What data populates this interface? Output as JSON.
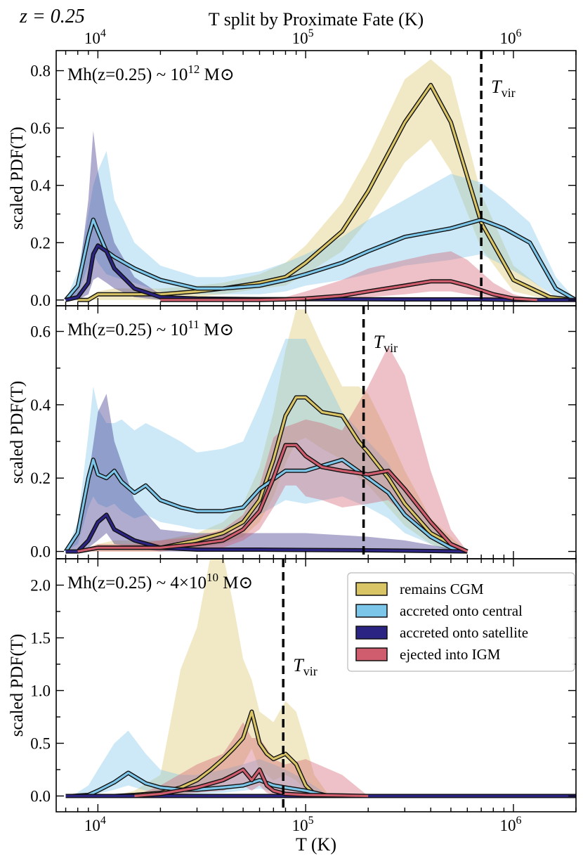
{
  "figure": {
    "redshift_label": "z = 0.25",
    "top_title": "T split by Proximate Fate (K)",
    "xlabel": "T (K)",
    "ylabel": "scaled PDF(T)",
    "x_tick_labels": [
      "10^4",
      "10^5",
      "10^6"
    ]
  },
  "legend": {
    "placement": "upper-right of bottom panel",
    "entries": [
      {
        "label": "remains CGM",
        "color": "#d9c566"
      },
      {
        "label": "accreted onto central",
        "color": "#7cc6ea"
      },
      {
        "label": "accreted onto satellite",
        "color": "#2c2483"
      },
      {
        "label": "ejected into IGM",
        "color": "#cf5d6d"
      }
    ]
  },
  "chart_data": [
    {
      "type": "line",
      "title": "Mh(z=0.25) ~ 10^12 M_sun",
      "xscale": "log",
      "xlim": [
        6300,
        2000000
      ],
      "ylim": [
        -0.02,
        0.87
      ],
      "yticks": [
        0.0,
        0.2,
        0.4,
        0.6,
        0.8
      ],
      "tvir": 700000,
      "tvir_label": "T_vir",
      "series": [
        {
          "name": "remains CGM",
          "x": [
            8000,
            9000,
            10000,
            12000,
            15000,
            20000,
            30000,
            40000,
            60000,
            80000,
            100000,
            150000,
            200000,
            300000,
            400000,
            500000,
            700000,
            1000000,
            1500000,
            2000000
          ],
          "y": [
            0.0,
            0.0,
            0.02,
            0.02,
            0.02,
            0.02,
            0.03,
            0.04,
            0.06,
            0.08,
            0.13,
            0.24,
            0.38,
            0.62,
            0.75,
            0.62,
            0.27,
            0.07,
            0.01,
            0.0
          ],
          "lo": [
            0.0,
            0.0,
            0.0,
            0.0,
            0.0,
            0.0,
            0.01,
            0.02,
            0.04,
            0.05,
            0.09,
            0.17,
            0.28,
            0.48,
            0.56,
            0.45,
            0.18,
            0.03,
            0.0,
            0.0
          ],
          "hi": [
            0.0,
            0.01,
            0.03,
            0.04,
            0.04,
            0.04,
            0.05,
            0.06,
            0.09,
            0.13,
            0.19,
            0.34,
            0.5,
            0.77,
            0.84,
            0.78,
            0.37,
            0.12,
            0.02,
            0.0
          ]
        },
        {
          "name": "accreted onto central",
          "x": [
            7000,
            8000,
            9000,
            9500,
            10000,
            11000,
            12000,
            15000,
            20000,
            30000,
            40000,
            60000,
            80000,
            100000,
            150000,
            200000,
            300000,
            500000,
            700000,
            900000,
            1200000,
            1600000,
            2000000
          ],
          "y": [
            0.0,
            0.05,
            0.22,
            0.28,
            0.24,
            0.17,
            0.15,
            0.11,
            0.07,
            0.04,
            0.04,
            0.05,
            0.07,
            0.09,
            0.13,
            0.17,
            0.22,
            0.25,
            0.28,
            0.25,
            0.2,
            0.04,
            0.0
          ],
          "lo": [
            0.0,
            0.02,
            0.12,
            0.16,
            0.13,
            0.09,
            0.08,
            0.06,
            0.03,
            0.02,
            0.02,
            0.02,
            0.03,
            0.05,
            0.07,
            0.09,
            0.12,
            0.14,
            0.16,
            0.12,
            0.07,
            0.01,
            0.0
          ],
          "hi": [
            0.0,
            0.1,
            0.3,
            0.4,
            0.45,
            0.52,
            0.35,
            0.2,
            0.12,
            0.08,
            0.08,
            0.1,
            0.13,
            0.16,
            0.22,
            0.28,
            0.35,
            0.44,
            0.41,
            0.35,
            0.27,
            0.08,
            0.0
          ]
        },
        {
          "name": "accreted onto satellite",
          "x": [
            7000,
            8000,
            9000,
            9500,
            10000,
            11000,
            12000,
            15000,
            20000,
            30000,
            60000,
            100000,
            300000,
            700000,
            1000000,
            2000000
          ],
          "y": [
            0.0,
            0.01,
            0.06,
            0.16,
            0.19,
            0.17,
            0.11,
            0.04,
            0.01,
            0.005,
            0.003,
            0.003,
            0.002,
            0.002,
            0.0,
            0.0
          ],
          "lo": [
            0.0,
            0.0,
            0.02,
            0.07,
            0.08,
            0.06,
            0.04,
            0.01,
            0.0,
            0.0,
            0.0,
            0.0,
            0.0,
            0.0,
            0.0,
            0.0
          ],
          "hi": [
            0.0,
            0.05,
            0.35,
            0.59,
            0.45,
            0.3,
            0.2,
            0.08,
            0.02,
            0.01,
            0.01,
            0.01,
            0.01,
            0.01,
            0.0,
            0.0
          ]
        },
        {
          "name": "ejected into IGM",
          "x": [
            20000,
            60000,
            80000,
            100000,
            150000,
            200000,
            300000,
            400000,
            500000,
            600000,
            800000,
            1000000,
            1300000
          ],
          "y": [
            0.0,
            0.0,
            0.002,
            0.005,
            0.015,
            0.03,
            0.05,
            0.065,
            0.065,
            0.05,
            0.02,
            0.005,
            0.0
          ],
          "lo": [
            0.0,
            0.0,
            0.0,
            0.0,
            0.005,
            0.01,
            0.02,
            0.03,
            0.03,
            0.02,
            0.005,
            0.0,
            0.0
          ],
          "hi": [
            0.0,
            0.0,
            0.01,
            0.03,
            0.07,
            0.11,
            0.14,
            0.16,
            0.17,
            0.14,
            0.06,
            0.02,
            0.0
          ]
        }
      ]
    },
    {
      "type": "line",
      "title": "Mh(z=0.25) ~ 10^11 M_sun",
      "xscale": "log",
      "xlim": [
        6300,
        2000000
      ],
      "ylim": [
        -0.02,
        0.67
      ],
      "yticks": [
        0.0,
        0.2,
        0.4,
        0.6
      ],
      "tvir": 190000,
      "tvir_label": "T_vir",
      "series": [
        {
          "name": "remains CGM",
          "x": [
            8000,
            10000,
            12000,
            15000,
            20000,
            30000,
            40000,
            50000,
            60000,
            70000,
            80000,
            90000,
            100000,
            120000,
            150000,
            180000,
            200000,
            250000,
            300000,
            400000,
            500000,
            600000
          ],
          "y": [
            0.0,
            0.01,
            0.01,
            0.01,
            0.01,
            0.03,
            0.05,
            0.08,
            0.14,
            0.25,
            0.37,
            0.42,
            0.42,
            0.38,
            0.37,
            0.3,
            0.27,
            0.2,
            0.13,
            0.05,
            0.02,
            0.0
          ],
          "lo": [
            0.0,
            0.0,
            0.0,
            0.0,
            0.0,
            0.01,
            0.02,
            0.04,
            0.08,
            0.15,
            0.24,
            0.3,
            0.31,
            0.28,
            0.25,
            0.2,
            0.18,
            0.12,
            0.07,
            0.02,
            0.0,
            0.0
          ],
          "hi": [
            0.0,
            0.02,
            0.03,
            0.03,
            0.03,
            0.05,
            0.08,
            0.13,
            0.23,
            0.38,
            0.55,
            0.66,
            0.66,
            0.56,
            0.45,
            0.45,
            0.43,
            0.32,
            0.22,
            0.09,
            0.04,
            0.0
          ]
        },
        {
          "name": "accreted onto central",
          "x": [
            7000,
            8000,
            9000,
            9500,
            10000,
            11000,
            12000,
            13000,
            15000,
            17000,
            20000,
            25000,
            30000,
            40000,
            50000,
            60000,
            80000,
            100000,
            150000,
            200000,
            250000,
            300000,
            400000,
            500000,
            600000
          ],
          "y": [
            0.0,
            0.05,
            0.2,
            0.25,
            0.21,
            0.2,
            0.22,
            0.19,
            0.16,
            0.18,
            0.14,
            0.12,
            0.11,
            0.11,
            0.12,
            0.17,
            0.22,
            0.22,
            0.25,
            0.2,
            0.16,
            0.1,
            0.04,
            0.01,
            0.0
          ],
          "lo": [
            0.0,
            0.02,
            0.12,
            0.15,
            0.13,
            0.12,
            0.13,
            0.11,
            0.09,
            0.1,
            0.08,
            0.07,
            0.06,
            0.06,
            0.07,
            0.1,
            0.14,
            0.13,
            0.15,
            0.12,
            0.09,
            0.05,
            0.02,
            0.0,
            0.0
          ],
          "hi": [
            0.0,
            0.08,
            0.32,
            0.45,
            0.39,
            0.35,
            0.35,
            0.36,
            0.33,
            0.35,
            0.33,
            0.3,
            0.27,
            0.28,
            0.3,
            0.4,
            0.58,
            0.58,
            0.38,
            0.3,
            0.24,
            0.16,
            0.07,
            0.02,
            0.0
          ]
        },
        {
          "name": "accreted onto satellite",
          "x": [
            7000,
            8000,
            9000,
            10000,
            11000,
            12000,
            15000,
            20000,
            30000,
            60000,
            100000,
            200000,
            300000,
            600000
          ],
          "y": [
            0.0,
            0.0,
            0.03,
            0.08,
            0.1,
            0.06,
            0.03,
            0.01,
            0.005,
            0.005,
            0.004,
            0.003,
            0.002,
            0.0
          ],
          "lo": [
            0.0,
            0.0,
            0.01,
            0.03,
            0.05,
            0.02,
            0.01,
            0.0,
            0.0,
            0.0,
            0.0,
            0.0,
            0.0,
            0.0
          ],
          "hi": [
            0.0,
            0.05,
            0.2,
            0.38,
            0.43,
            0.3,
            0.14,
            0.06,
            0.05,
            0.05,
            0.05,
            0.04,
            0.03,
            0.0
          ]
        },
        {
          "name": "ejected into IGM",
          "x": [
            8000,
            10000,
            15000,
            20000,
            30000,
            40000,
            50000,
            60000,
            70000,
            80000,
            90000,
            100000,
            120000,
            150000,
            200000,
            250000,
            300000,
            400000,
            500000,
            600000
          ],
          "y": [
            0.0,
            0.01,
            0.01,
            0.01,
            0.02,
            0.03,
            0.06,
            0.11,
            0.2,
            0.29,
            0.29,
            0.26,
            0.23,
            0.22,
            0.21,
            0.22,
            0.17,
            0.08,
            0.02,
            0.0
          ],
          "lo": [
            0.0,
            0.0,
            0.0,
            0.0,
            0.01,
            0.01,
            0.03,
            0.06,
            0.12,
            0.18,
            0.18,
            0.15,
            0.14,
            0.12,
            0.13,
            0.14,
            0.1,
            0.04,
            0.01,
            0.0
          ],
          "hi": [
            0.0,
            0.02,
            0.02,
            0.03,
            0.04,
            0.06,
            0.1,
            0.18,
            0.31,
            0.34,
            0.35,
            0.36,
            0.35,
            0.33,
            0.45,
            0.56,
            0.48,
            0.22,
            0.06,
            0.0
          ]
        }
      ]
    },
    {
      "type": "line",
      "title": "Mh(z=0.25) ~ 4×10^10 M_sun",
      "xscale": "log",
      "xlim": [
        6300,
        2000000
      ],
      "ylim": [
        -0.15,
        2.25
      ],
      "yticks": [
        0.0,
        0.5,
        1.0,
        1.5,
        2.0
      ],
      "tvir": 78000,
      "tvir_label": "T_vir",
      "series": [
        {
          "name": "remains CGM",
          "x": [
            12000,
            15000,
            20000,
            25000,
            30000,
            35000,
            40000,
            45000,
            50000,
            55000,
            60000,
            65000,
            70000,
            80000,
            90000,
            100000,
            110000,
            130000
          ],
          "y": [
            0.0,
            0.01,
            0.03,
            0.08,
            0.15,
            0.25,
            0.35,
            0.45,
            0.55,
            0.8,
            0.5,
            0.4,
            0.35,
            0.4,
            0.3,
            0.1,
            0.02,
            0.0
          ],
          "lo": [
            0.0,
            0.0,
            0.01,
            0.02,
            0.05,
            0.1,
            0.15,
            0.2,
            0.3,
            0.45,
            0.25,
            0.2,
            0.15,
            0.2,
            0.15,
            0.05,
            0.0,
            0.0
          ],
          "hi": [
            0.0,
            0.05,
            0.2,
            1.2,
            1.6,
            2.3,
            2.3,
            1.8,
            1.3,
            1.1,
            0.8,
            0.75,
            0.7,
            0.9,
            0.8,
            0.5,
            0.2,
            0.0
          ]
        },
        {
          "name": "accreted onto central",
          "x": [
            7500,
            9000,
            10000,
            12000,
            14000,
            17000,
            20000,
            25000,
            30000,
            40000,
            50000,
            60000,
            70000,
            80000,
            100000,
            130000
          ],
          "y": [
            0.0,
            0.01,
            0.05,
            0.13,
            0.22,
            0.12,
            0.08,
            0.06,
            0.06,
            0.08,
            0.1,
            0.15,
            0.1,
            0.08,
            0.05,
            0.0
          ],
          "lo": [
            0.0,
            0.0,
            0.02,
            0.06,
            0.1,
            0.05,
            0.03,
            0.02,
            0.02,
            0.03,
            0.05,
            0.07,
            0.04,
            0.03,
            0.02,
            0.0
          ],
          "hi": [
            0.0,
            0.1,
            0.25,
            0.5,
            0.62,
            0.4,
            0.25,
            0.2,
            0.2,
            0.25,
            0.3,
            0.35,
            0.3,
            0.25,
            0.15,
            0.0
          ]
        },
        {
          "name": "accreted onto satellite",
          "x": [
            7000,
            2000000
          ],
          "y": [
            0.0,
            0.0
          ],
          "lo": [
            0.0,
            0.0
          ],
          "hi": [
            0.0,
            0.0
          ]
        },
        {
          "name": "ejected into IGM",
          "x": [
            15000,
            20000,
            30000,
            40000,
            45000,
            50000,
            55000,
            60000,
            65000,
            70000,
            80000,
            100000,
            150000,
            200000
          ],
          "y": [
            0.0,
            0.02,
            0.08,
            0.15,
            0.2,
            0.25,
            0.15,
            0.25,
            0.1,
            0.05,
            0.02,
            0.01,
            0.005,
            0.0
          ],
          "lo": [
            0.0,
            0.0,
            0.03,
            0.05,
            0.08,
            0.1,
            0.05,
            0.1,
            0.03,
            0.01,
            0.0,
            0.0,
            0.0,
            0.0
          ],
          "hi": [
            0.0,
            0.1,
            0.3,
            0.4,
            0.55,
            0.7,
            0.55,
            0.55,
            0.45,
            0.35,
            0.3,
            0.35,
            0.2,
            0.0
          ]
        }
      ]
    }
  ]
}
